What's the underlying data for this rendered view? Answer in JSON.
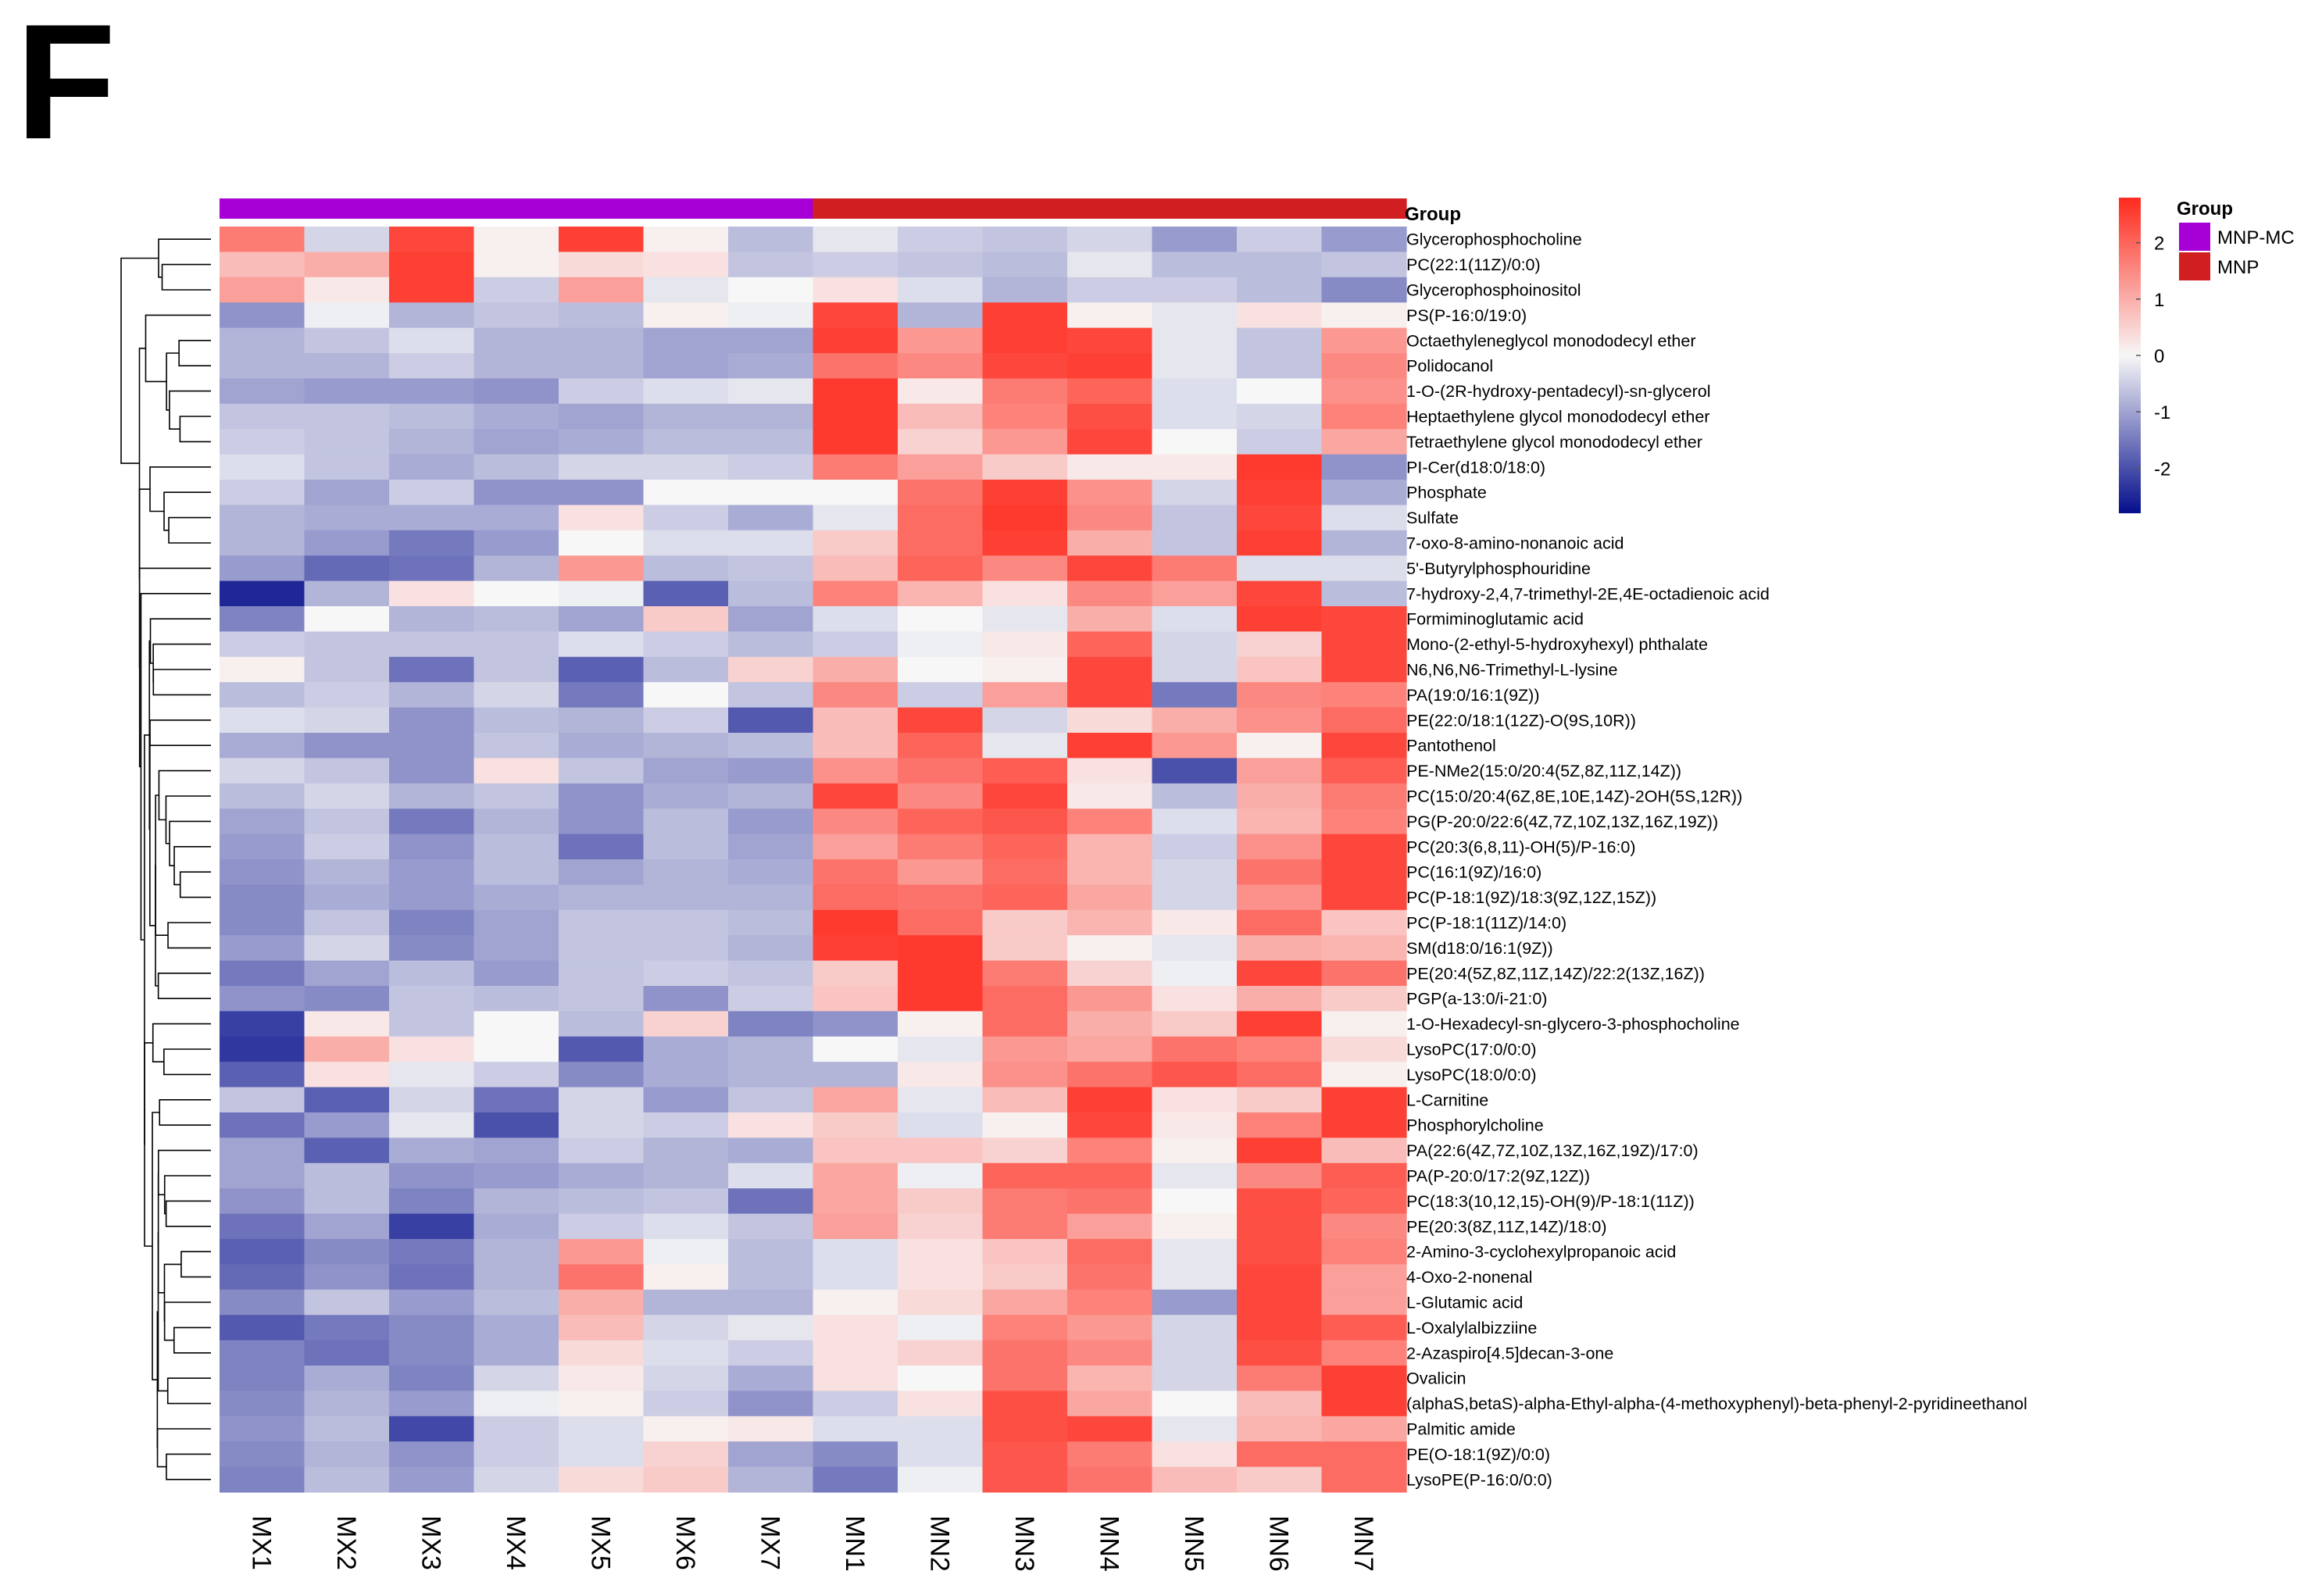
{
  "panel_letter": "F",
  "chart_data": {
    "type": "heatmap",
    "title": "",
    "annotation_title": "Group",
    "columns": [
      "MX1",
      "MX2",
      "MX3",
      "MX4",
      "MX5",
      "MX6",
      "MX7",
      "MN1",
      "MN2",
      "MN3",
      "MN4",
      "MN5",
      "MN6",
      "MN7"
    ],
    "column_groups": [
      "MNP-MC",
      "MNP-MC",
      "MNP-MC",
      "MNP-MC",
      "MNP-MC",
      "MNP-MC",
      "MNP-MC",
      "MNP",
      "MNP",
      "MNP",
      "MNP",
      "MNP",
      "MNP",
      "MNP"
    ],
    "groups": [
      {
        "name": "MNP-MC",
        "color": "#a600d6"
      },
      {
        "name": "MNP",
        "color": "#d11f21"
      }
    ],
    "colorbar": {
      "min": -2.8,
      "max": 2.8,
      "ticks": [
        2,
        1,
        0,
        -1,
        -2
      ],
      "tick_labels": [
        "2",
        "1",
        "0",
        "-1",
        "-2"
      ],
      "low_color": "#050e8c",
      "mid_color": "#f7f7f7",
      "high_color": "#ff2a1d"
    },
    "rows": [
      "Glycerophosphocholine",
      "PC(22:1(11Z)/0:0)",
      "Glycerophosphoinositol",
      "PS(P-16:0/19:0)",
      "Octaethyleneglycol monododecyl ether",
      "Polidocanol",
      "1-O-(2R-hydroxy-pentadecyl)-sn-glycerol",
      "Heptaethylene glycol monododecyl ether",
      "Tetraethylene glycol monododecyl ether",
      "PI-Cer(d18:0/18:0)",
      "Phosphate",
      "Sulfate",
      "7-oxo-8-amino-nonanoic acid",
      "5'-Butyrylphosphouridine",
      "7-hydroxy-2,4,7-trimethyl-2E,4E-octadienoic acid",
      "Formiminoglutamic acid",
      "Mono-(2-ethyl-5-hydroxyhexyl) phthalate",
      "N6,N6,N6-Trimethyl-L-lysine",
      "PA(19:0/16:1(9Z))",
      "PE(22:0/18:1(12Z)-O(9S,10R))",
      "Pantothenol",
      "PE-NMe2(15:0/20:4(5Z,8Z,11Z,14Z))",
      "PC(15:0/20:4(6Z,8E,10E,14Z)-2OH(5S,12R))",
      "PG(P-20:0/22:6(4Z,7Z,10Z,13Z,16Z,19Z))",
      "PC(20:3(6,8,11)-OH(5)/P-16:0)",
      "PC(16:1(9Z)/16:0)",
      "PC(P-18:1(9Z)/18:3(9Z,12Z,15Z))",
      "PC(P-18:1(11Z)/14:0)",
      "SM(d18:0/16:1(9Z))",
      "PE(20:4(5Z,8Z,11Z,14Z)/22:2(13Z,16Z))",
      "PGP(a-13:0/i-21:0)",
      "1-O-Hexadecyl-sn-glycero-3-phosphocholine",
      "LysoPC(17:0/0:0)",
      "LysoPC(18:0/0:0)",
      "L-Carnitine",
      "Phosphorylcholine",
      "PA(22:6(4Z,7Z,10Z,13Z,16Z,19Z)/17:0)",
      "PA(P-20:0/17:2(9Z,12Z))",
      "PC(18:3(10,12,15)-OH(9)/P-18:1(11Z))",
      "PE(20:3(8Z,11Z,14Z)/18:0)",
      "2-Amino-3-cyclohexylpropanoic acid",
      "4-Oxo-2-nonenal",
      "L-Glutamic acid",
      "L-Oxalylalbizziine",
      "2-Azaspiro[4.5]decan-3-one",
      "Ovalicin",
      "(alphaS,betaS)-alpha-Ethyl-alpha-(4-methoxyphenyl)-beta-phenyl-2-pyridineethanol",
      "Palmitic amide",
      "PE(O-18:1(9Z)/0:0)",
      "LysoPE(P-16:0/0:0)"
    ],
    "values": [
      [
        1.7,
        -0.4,
        2.4,
        0.1,
        2.5,
        0.1,
        -0.7,
        -0.2,
        -0.5,
        -0.6,
        -0.4,
        -1.1,
        -0.5,
        -1.1
      ],
      [
        0.8,
        1.0,
        2.5,
        0.1,
        0.4,
        0.3,
        -0.6,
        -0.5,
        -0.6,
        -0.7,
        -0.2,
        -0.7,
        -0.7,
        -0.6
      ],
      [
        1.2,
        0.2,
        2.5,
        -0.5,
        1.2,
        -0.2,
        0.0,
        0.3,
        -0.3,
        -0.8,
        -0.5,
        -0.5,
        -0.7,
        -1.3
      ],
      [
        -1.2,
        -0.1,
        -0.8,
        -0.6,
        -0.7,
        0.1,
        -0.1,
        2.4,
        -0.8,
        2.5,
        0.1,
        -0.2,
        0.3,
        0.1
      ],
      [
        -0.8,
        -0.6,
        -0.3,
        -0.8,
        -0.8,
        -1.0,
        -1.0,
        2.5,
        1.3,
        2.5,
        2.4,
        -0.2,
        -0.6,
        1.3
      ],
      [
        -0.8,
        -0.8,
        -0.5,
        -0.8,
        -0.8,
        -1.0,
        -0.9,
        1.8,
        1.5,
        2.4,
        2.5,
        -0.2,
        -0.6,
        1.5
      ],
      [
        -1.0,
        -1.1,
        -1.1,
        -1.2,
        -0.5,
        -0.3,
        -0.2,
        2.6,
        0.2,
        1.7,
        2.0,
        -0.3,
        0.0,
        1.4
      ],
      [
        -0.6,
        -0.6,
        -0.7,
        -0.9,
        -1.0,
        -0.8,
        -0.8,
        2.6,
        0.8,
        1.6,
        2.3,
        -0.3,
        -0.4,
        1.6
      ],
      [
        -0.5,
        -0.6,
        -0.8,
        -1.0,
        -0.9,
        -0.7,
        -0.7,
        2.6,
        0.5,
        1.3,
        2.4,
        0.0,
        -0.5,
        1.1
      ],
      [
        -0.3,
        -0.6,
        -0.9,
        -0.7,
        -0.4,
        -0.4,
        -0.5,
        1.7,
        1.2,
        0.6,
        0.2,
        0.2,
        2.6,
        -1.2
      ],
      [
        -0.5,
        -1.0,
        -0.5,
        -1.2,
        -1.2,
        0.0,
        0.0,
        0.0,
        1.8,
        2.5,
        1.4,
        -0.4,
        2.5,
        -0.9
      ],
      [
        -0.8,
        -0.9,
        -0.9,
        -0.9,
        0.3,
        -0.5,
        -0.9,
        -0.2,
        1.9,
        2.6,
        1.5,
        -0.6,
        2.4,
        -0.3
      ],
      [
        -0.8,
        -1.1,
        -1.5,
        -1.1,
        0.0,
        -0.3,
        -0.3,
        0.6,
        1.9,
        2.5,
        1.0,
        -0.6,
        2.5,
        -0.8
      ],
      [
        -1.1,
        -1.7,
        -1.6,
        -0.8,
        1.3,
        -0.7,
        -0.6,
        0.8,
        2.0,
        1.5,
        2.4,
        1.7,
        -0.3,
        -0.3
      ],
      [
        -2.5,
        -0.8,
        0.3,
        0.0,
        -0.1,
        -1.8,
        -0.7,
        1.6,
        0.9,
        0.3,
        1.5,
        1.2,
        2.4,
        -0.7
      ],
      [
        -1.4,
        0.0,
        -0.8,
        -0.7,
        -1.0,
        0.6,
        -1.0,
        -0.3,
        0.0,
        -0.2,
        1.0,
        -0.3,
        2.5,
        2.4
      ],
      [
        -0.5,
        -0.6,
        -0.6,
        -0.6,
        -0.3,
        -0.5,
        -0.7,
        -0.5,
        -0.1,
        0.2,
        2.0,
        -0.4,
        0.5,
        2.4
      ],
      [
        0.1,
        -0.6,
        -1.6,
        -0.6,
        -1.8,
        -0.7,
        0.5,
        1.0,
        0.0,
        0.1,
        2.4,
        -0.4,
        0.7,
        2.4
      ],
      [
        -0.7,
        -0.5,
        -0.8,
        -0.4,
        -1.5,
        0.0,
        -0.6,
        1.5,
        -0.5,
        1.2,
        2.4,
        -1.5,
        1.5,
        1.6
      ],
      [
        -0.3,
        -0.4,
        -1.2,
        -0.7,
        -0.8,
        -0.5,
        -1.9,
        0.8,
        2.4,
        -0.4,
        0.4,
        1.0,
        1.4,
        1.9
      ],
      [
        -0.9,
        -1.2,
        -1.2,
        -0.6,
        -0.9,
        -0.8,
        -0.7,
        0.8,
        2.0,
        -0.2,
        2.5,
        1.3,
        0.1,
        2.4
      ],
      [
        -0.4,
        -0.6,
        -1.2,
        0.3,
        -0.6,
        -1.0,
        -1.1,
        1.4,
        1.8,
        2.1,
        0.3,
        -2.0,
        1.2,
        2.1
      ],
      [
        -0.7,
        -0.4,
        -0.8,
        -0.6,
        -1.2,
        -0.9,
        -0.8,
        2.4,
        1.5,
        2.4,
        0.2,
        -0.7,
        1.0,
        1.7
      ],
      [
        -1.0,
        -0.6,
        -1.5,
        -0.8,
        -1.2,
        -0.7,
        -1.1,
        1.5,
        2.0,
        2.2,
        1.6,
        -0.3,
        0.9,
        1.6
      ],
      [
        -1.1,
        -0.5,
        -1.2,
        -0.7,
        -1.6,
        -0.7,
        -1.0,
        1.2,
        1.7,
        2.0,
        0.9,
        -0.5,
        1.4,
        2.4
      ],
      [
        -1.2,
        -0.8,
        -1.1,
        -0.7,
        -1.0,
        -0.8,
        -0.9,
        1.8,
        1.3,
        1.9,
        0.9,
        -0.4,
        1.8,
        2.4
      ],
      [
        -1.3,
        -0.9,
        -1.1,
        -0.9,
        -0.8,
        -0.8,
        -0.8,
        1.9,
        1.8,
        2.0,
        1.1,
        -0.4,
        1.4,
        2.4
      ],
      [
        -1.3,
        -0.6,
        -1.4,
        -1.0,
        -0.6,
        -0.6,
        -0.7,
        2.6,
        1.9,
        0.6,
        0.9,
        0.2,
        1.9,
        0.7
      ],
      [
        -1.1,
        -0.4,
        -1.3,
        -1.0,
        -0.6,
        -0.6,
        -0.8,
        2.5,
        2.6,
        0.6,
        0.1,
        -0.2,
        1.0,
        0.9
      ],
      [
        -1.5,
        -1.0,
        -0.7,
        -1.1,
        -0.6,
        -0.5,
        -0.6,
        0.6,
        2.6,
        1.7,
        0.5,
        -0.1,
        2.4,
        1.8
      ],
      [
        -1.2,
        -1.3,
        -0.6,
        -0.7,
        -0.6,
        -1.2,
        -0.5,
        0.7,
        2.6,
        1.9,
        1.3,
        0.3,
        1.0,
        0.6
      ],
      [
        -2.2,
        0.2,
        -0.6,
        0.0,
        -0.7,
        0.5,
        -1.4,
        -1.2,
        0.1,
        1.9,
        1.0,
        0.6,
        2.5,
        0.1
      ],
      [
        -2.3,
        1.0,
        0.3,
        0.0,
        -1.9,
        -0.9,
        -0.8,
        0.0,
        -0.2,
        1.3,
        1.1,
        1.8,
        1.6,
        0.4
      ],
      [
        -1.8,
        0.3,
        -0.2,
        -0.5,
        -1.3,
        -0.9,
        -0.8,
        -0.8,
        0.2,
        1.4,
        1.8,
        2.2,
        1.9,
        0.1
      ],
      [
        -0.6,
        -1.8,
        -0.4,
        -1.6,
        -0.4,
        -1.1,
        -0.6,
        1.1,
        -0.2,
        0.8,
        2.5,
        0.3,
        0.6,
        2.5
      ],
      [
        -1.6,
        -1.1,
        -0.2,
        -2.0,
        -0.4,
        -0.5,
        0.3,
        0.6,
        -0.3,
        0.1,
        2.4,
        0.2,
        1.6,
        2.5
      ],
      [
        -1.0,
        -1.8,
        -0.9,
        -1.0,
        -0.5,
        -0.8,
        -0.9,
        0.7,
        0.7,
        0.5,
        1.6,
        0.1,
        2.5,
        0.8
      ],
      [
        -1.0,
        -0.7,
        -1.2,
        -1.1,
        -0.9,
        -0.8,
        -0.3,
        1.1,
        -0.1,
        2.0,
        2.0,
        -0.2,
        1.5,
        2.1
      ],
      [
        -1.2,
        -0.7,
        -1.4,
        -0.8,
        -0.7,
        -0.6,
        -1.6,
        1.1,
        0.6,
        1.7,
        1.8,
        0.0,
        2.3,
        2.0
      ],
      [
        -1.6,
        -1.0,
        -2.2,
        -0.9,
        -0.5,
        -0.3,
        -0.6,
        1.2,
        0.5,
        1.7,
        1.2,
        0.1,
        2.3,
        1.5
      ],
      [
        -1.8,
        -1.3,
        -1.5,
        -0.8,
        1.3,
        -0.1,
        -0.7,
        -0.3,
        0.3,
        0.7,
        1.9,
        -0.2,
        2.3,
        1.6
      ],
      [
        -1.7,
        -1.2,
        -1.6,
        -0.8,
        1.8,
        0.1,
        -0.7,
        -0.3,
        0.3,
        0.6,
        1.8,
        -0.2,
        2.4,
        1.2
      ],
      [
        -1.3,
        -0.6,
        -1.1,
        -0.7,
        1.0,
        -0.8,
        -0.8,
        0.1,
        0.4,
        1.1,
        1.6,
        -1.1,
        2.4,
        1.2
      ],
      [
        -1.9,
        -1.5,
        -1.3,
        -0.9,
        0.8,
        -0.4,
        -0.2,
        0.3,
        -0.1,
        1.6,
        1.3,
        -0.4,
        2.4,
        2.1
      ],
      [
        -1.4,
        -1.6,
        -1.3,
        -0.9,
        0.4,
        -0.3,
        -0.5,
        0.3,
        0.5,
        1.8,
        1.5,
        -0.4,
        2.3,
        1.6
      ],
      [
        -1.4,
        -0.9,
        -1.4,
        -0.4,
        0.2,
        -0.4,
        -0.9,
        0.3,
        0.0,
        1.8,
        0.9,
        -0.4,
        1.7,
        2.5
      ],
      [
        -1.3,
        -0.8,
        -1.1,
        -0.1,
        0.1,
        -0.5,
        -1.2,
        -0.5,
        0.3,
        2.3,
        1.1,
        0.0,
        0.8,
        2.5
      ],
      [
        -1.2,
        -0.7,
        -2.1,
        -0.5,
        -0.3,
        0.1,
        0.2,
        -0.3,
        -0.3,
        2.3,
        2.4,
        -0.2,
        0.9,
        1.1
      ],
      [
        -1.3,
        -0.8,
        -1.2,
        -0.5,
        -0.3,
        0.5,
        -1.0,
        -1.3,
        -0.3,
        2.2,
        1.7,
        0.3,
        1.9,
        1.9
      ],
      [
        -1.4,
        -0.7,
        -1.1,
        -0.4,
        0.4,
        0.6,
        -0.8,
        -1.5,
        -0.1,
        2.2,
        1.8,
        0.8,
        0.6,
        1.9
      ]
    ]
  }
}
